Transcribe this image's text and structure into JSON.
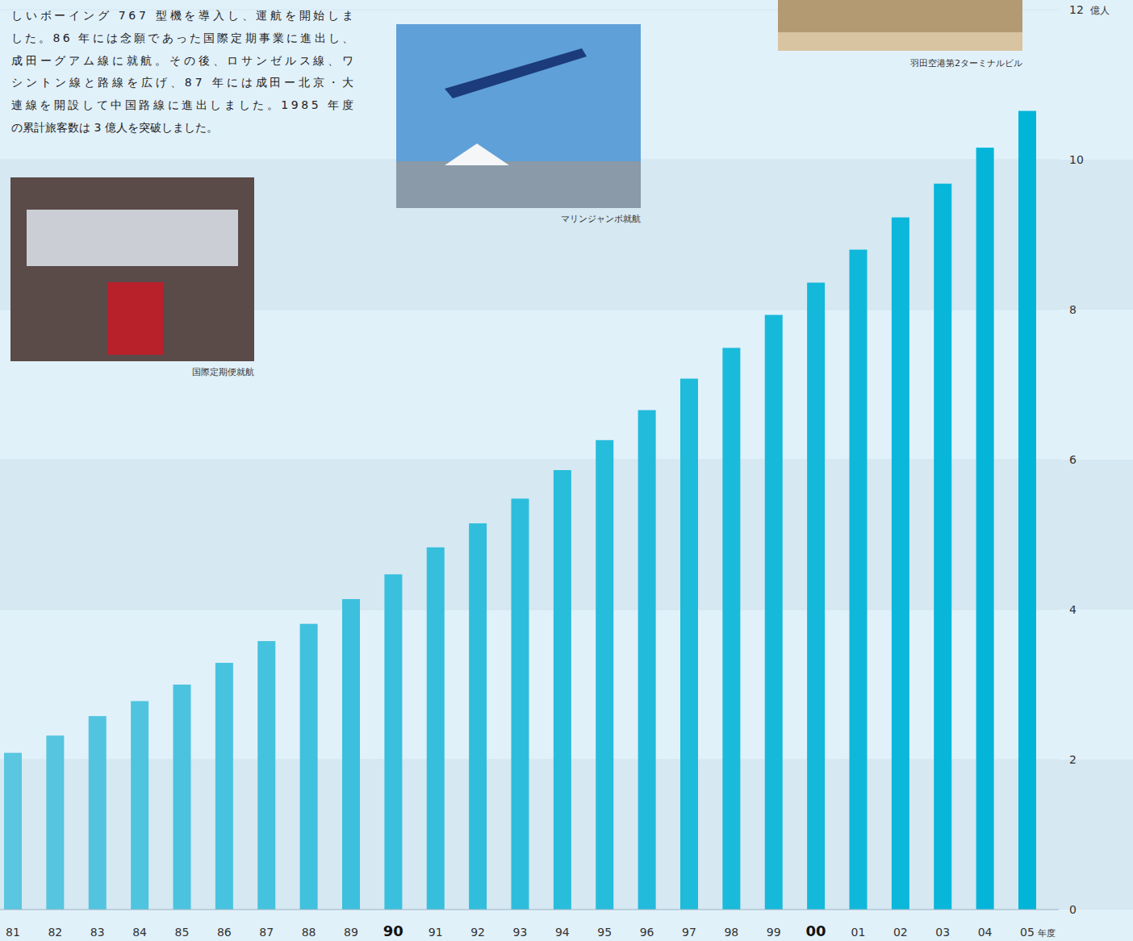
{
  "chart_data": {
    "type": "bar",
    "description": [
      "しいボーイング 767 型機を導入し、運航を開始しま",
      "した。86 年には念願であった国際定期事業に進出し、",
      "成田ーグアム線に就航。その後、ロサンゼルス線、ワ",
      "シントン線と路線を広げ、87 年には成田ー北京・大",
      "連線を開設して中国路線に進出しました。1985 年度",
      "の累計旅客数は 3 億人を突破しました。"
    ],
    "annotations": [
      "国際定期便就航",
      "マリンジャンボ就航",
      "羽田空港第2ターミナルビル"
    ],
    "x_label": "年度",
    "y_label": "億人",
    "categories": [
      "81",
      "82",
      "83",
      "84",
      "85",
      "86",
      "87",
      "88",
      "89",
      "90",
      "91",
      "92",
      "93",
      "94",
      "95",
      "96",
      "97",
      "98",
      "99",
      "00",
      "01",
      "02",
      "03",
      "04",
      "05"
    ],
    "values": [
      2.09,
      2.32,
      2.58,
      2.78,
      3.0,
      3.29,
      3.58,
      3.81,
      4.14,
      4.47,
      4.83,
      5.15,
      5.48,
      5.86,
      6.26,
      6.66,
      7.08,
      7.49,
      7.93,
      8.36,
      8.8,
      9.23,
      9.68,
      10.16,
      10.65
    ],
    "colors": [
      "#5ac6e0",
      "#56c5e0",
      "#53c4df",
      "#4fc4df",
      "#4bc3df",
      "#47c3df",
      "#44c2de",
      "#40c1de",
      "#3cc0de",
      "#38c0dd",
      "#35bfdd",
      "#31bedd",
      "#2dbddc",
      "#29bddc",
      "#26bcdc",
      "#22bbdc",
      "#1ebbdb",
      "#1abadb",
      "#17b9db",
      "#13b8da",
      "#0fb8da",
      "#0bb7da",
      "#08b6d9",
      "#04b5d9",
      "#00b5d8"
    ],
    "ylim": [
      0,
      12
    ],
    "yticks": [
      0,
      2,
      4,
      6,
      8,
      10,
      12
    ],
    "grid": true
  }
}
